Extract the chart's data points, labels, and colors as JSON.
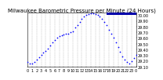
{
  "title": "Milwaukee Barometric Pressure per Minute (24 Hours)",
  "bg_color": "#ffffff",
  "plot_bg": "#ffffff",
  "dot_color": "#0000ff",
  "dot_size": 1.5,
  "line_color": "#0000ff",
  "highlight_color": "#0000aa",
  "x_min": 0,
  "x_max": 1440,
  "y_min": 29.1,
  "y_max": 30.05,
  "y_ticks": [
    29.1,
    29.2,
    29.3,
    29.4,
    29.5,
    29.6,
    29.7,
    29.8,
    29.9,
    30.0
  ],
  "x_tick_positions": [
    0,
    60,
    120,
    180,
    240,
    300,
    360,
    420,
    480,
    540,
    600,
    660,
    720,
    780,
    840,
    900,
    960,
    1020,
    1080,
    1140,
    1200,
    1260,
    1320,
    1380,
    1440
  ],
  "x_tick_labels": [
    "0",
    "1",
    "2",
    "3",
    "4",
    "5",
    "6",
    "7",
    "8",
    "9",
    "10",
    "11",
    "12",
    "13",
    "14",
    "15",
    "16",
    "17",
    "18",
    "19",
    "20",
    "21",
    "22",
    "23",
    "0"
  ],
  "grid_x_positions": [
    60,
    120,
    180,
    240,
    300,
    360,
    420,
    480,
    540,
    600,
    660,
    720,
    780,
    840,
    900,
    960,
    1020,
    1080,
    1140,
    1200,
    1260,
    1320,
    1380
  ],
  "data_x": [
    0,
    30,
    60,
    90,
    120,
    150,
    180,
    210,
    240,
    270,
    300,
    330,
    360,
    390,
    420,
    450,
    480,
    510,
    540,
    570,
    600,
    630,
    660,
    690,
    720,
    750,
    780,
    810,
    840,
    870,
    900,
    930,
    960,
    990,
    1020,
    1050,
    1080,
    1110,
    1140,
    1170,
    1200,
    1230,
    1260,
    1290,
    1320,
    1350,
    1380,
    1410,
    1440
  ],
  "data_y": [
    29.18,
    29.16,
    29.15,
    29.18,
    29.22,
    29.27,
    29.3,
    29.34,
    29.38,
    29.42,
    29.47,
    29.52,
    29.57,
    29.6,
    29.63,
    29.65,
    29.66,
    29.67,
    29.68,
    29.7,
    29.72,
    29.78,
    29.83,
    29.88,
    29.93,
    29.97,
    30.0,
    30.02,
    30.03,
    30.03,
    30.02,
    30.0,
    29.97,
    29.93,
    29.88,
    29.82,
    29.75,
    29.68,
    29.6,
    29.52,
    29.44,
    29.36,
    29.28,
    29.22,
    29.18,
    29.16,
    29.2,
    29.25,
    29.3
  ],
  "highlight_x_start": 1050,
  "highlight_x_end": 1440,
  "highlight_y": 30.05,
  "title_fontsize": 5,
  "tick_fontsize": 3.5
}
